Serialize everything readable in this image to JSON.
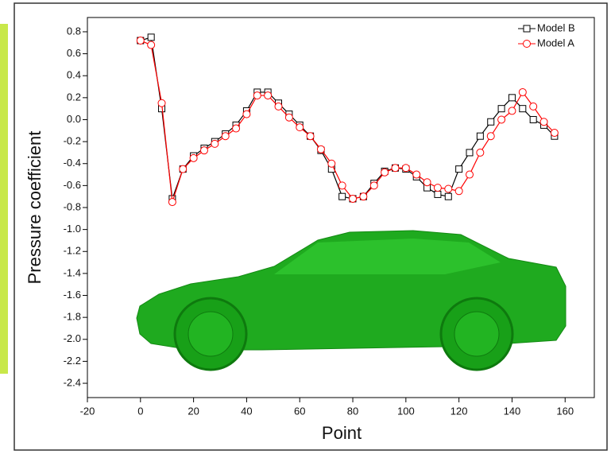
{
  "chart_data": {
    "type": "line",
    "xlabel": "Point",
    "ylabel": "Pressure coefficient",
    "x": [
      0,
      4,
      8,
      12,
      16,
      20,
      24,
      28,
      32,
      36,
      40,
      44,
      48,
      52,
      56,
      60,
      64,
      68,
      72,
      76,
      80,
      84,
      88,
      92,
      96,
      100,
      104,
      108,
      112,
      116,
      120,
      124,
      128,
      132,
      136,
      140,
      144,
      148,
      152,
      156
    ],
    "series": [
      {
        "name": "Model B",
        "color": "#000000",
        "marker": "square",
        "values": [
          0.72,
          0.75,
          0.1,
          -0.72,
          -0.45,
          -0.33,
          -0.26,
          -0.2,
          -0.13,
          -0.05,
          0.08,
          0.25,
          0.25,
          0.15,
          0.05,
          -0.05,
          -0.15,
          -0.28,
          -0.45,
          -0.7,
          -0.72,
          -0.7,
          -0.58,
          -0.47,
          -0.44,
          -0.45,
          -0.52,
          -0.62,
          -0.68,
          -0.7,
          -0.45,
          -0.3,
          -0.15,
          -0.02,
          0.1,
          0.2,
          0.1,
          0.0,
          -0.05,
          -0.15
        ]
      },
      {
        "name": "Model A",
        "color": "#ff0000",
        "marker": "circle",
        "values": [
          0.72,
          0.68,
          0.15,
          -0.75,
          -0.45,
          -0.35,
          -0.28,
          -0.22,
          -0.15,
          -0.08,
          0.05,
          0.22,
          0.22,
          0.12,
          0.02,
          -0.07,
          -0.15,
          -0.27,
          -0.4,
          -0.6,
          -0.72,
          -0.7,
          -0.6,
          -0.48,
          -0.44,
          -0.44,
          -0.5,
          -0.57,
          -0.62,
          -0.63,
          -0.65,
          -0.5,
          -0.3,
          -0.15,
          0.0,
          0.08,
          0.25,
          0.12,
          -0.02,
          -0.12
        ]
      }
    ],
    "xlim": [
      -20,
      171
    ],
    "ylim": [
      -2.53,
      0.93
    ],
    "xticks": [
      -20,
      0,
      20,
      40,
      60,
      80,
      100,
      120,
      140,
      160
    ],
    "yticks": [
      0.8,
      0.6,
      0.4,
      0.2,
      {
        "value": 0,
        "label": "0.0"
      },
      -0.2,
      -0.4,
      -0.6,
      -0.8,
      {
        "value": -1,
        "label": "-1.0"
      },
      -1.2,
      -1.4,
      -1.6,
      -1.8,
      {
        "value": -2,
        "label": "-2.0"
      },
      -2.2,
      -2.4
    ],
    "legend": "top-right"
  }
}
